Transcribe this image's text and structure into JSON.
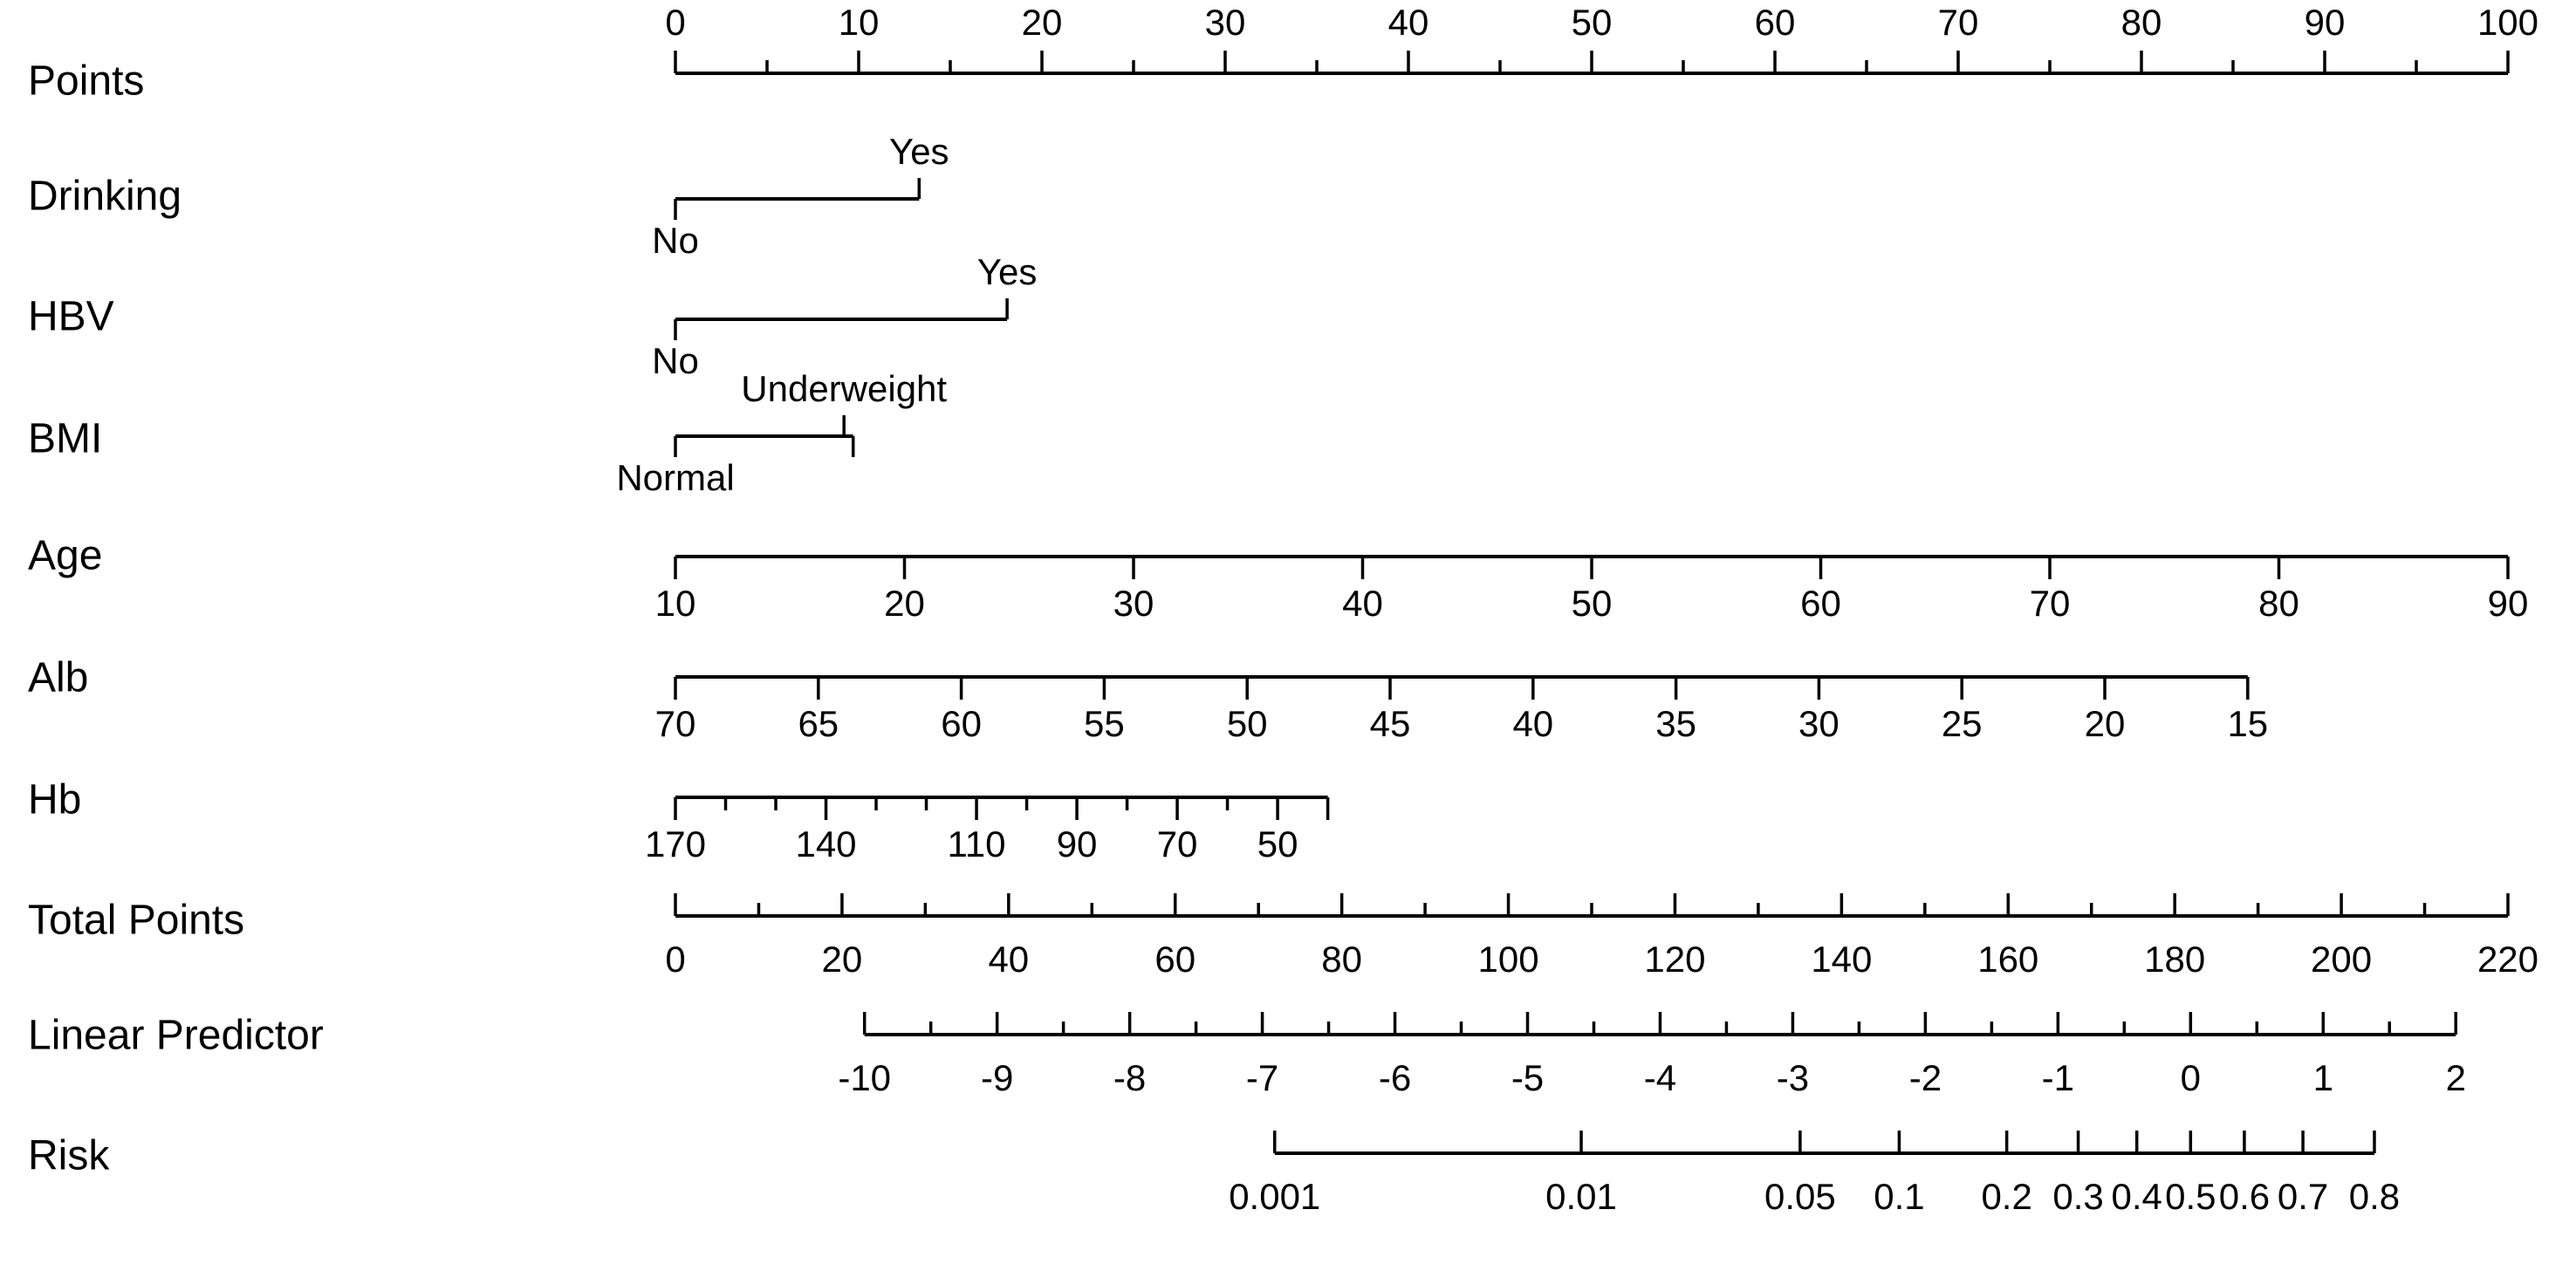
{
  "chart_data": {
    "type": "nomogram",
    "rows": [
      {
        "label": "Points",
        "ticks_above": true,
        "major": [
          {
            "v": 0,
            "text": "0"
          },
          {
            "v": 10,
            "text": "10"
          },
          {
            "v": 20,
            "text": "20"
          },
          {
            "v": 30,
            "text": "30"
          },
          {
            "v": 40,
            "text": "40"
          },
          {
            "v": 50,
            "text": "50"
          },
          {
            "v": 60,
            "text": "60"
          },
          {
            "v": 70,
            "text": "70"
          },
          {
            "v": 80,
            "text": "80"
          },
          {
            "v": 90,
            "text": "90"
          },
          {
            "v": 100,
            "text": "100"
          }
        ],
        "minor": [
          5,
          15,
          25,
          35,
          45,
          55,
          65,
          75,
          85,
          95
        ]
      },
      {
        "label": "Drinking",
        "categories": [
          {
            "text": "No",
            "points": 0
          },
          {
            "text": "Yes",
            "points": 13.3
          }
        ]
      },
      {
        "label": "HBV",
        "categories": [
          {
            "text": "No",
            "points": 0
          },
          {
            "text": "Yes",
            "points": 18.1
          }
        ]
      },
      {
        "label": "BMI",
        "categories": [
          {
            "text": "Normal",
            "points": 0
          },
          {
            "text": "Underweight",
            "points": 9.2
          },
          {
            "text": "",
            "points": 9.7
          }
        ]
      },
      {
        "label": "Age",
        "ticks_above": false,
        "major": [
          {
            "v": 10,
            "text": "10"
          },
          {
            "v": 20,
            "text": "20"
          },
          {
            "v": 30,
            "text": "30"
          },
          {
            "v": 40,
            "text": "40"
          },
          {
            "v": 50,
            "text": "50"
          },
          {
            "v": 60,
            "text": "60"
          },
          {
            "v": 70,
            "text": "70"
          },
          {
            "v": 80,
            "text": "80"
          },
          {
            "v": 90,
            "text": "90"
          }
        ],
        "minor": [],
        "points_per_unit": 1.25,
        "points_at_start": 0,
        "start": 10
      },
      {
        "label": "Alb",
        "ticks_above": false,
        "major": [
          {
            "v": 70,
            "text": "70"
          },
          {
            "v": 65,
            "text": "65"
          },
          {
            "v": 60,
            "text": "60"
          },
          {
            "v": 55,
            "text": "55"
          },
          {
            "v": 50,
            "text": "50"
          },
          {
            "v": 45,
            "text": "45"
          },
          {
            "v": 40,
            "text": "40"
          },
          {
            "v": 35,
            "text": "35"
          },
          {
            "v": 30,
            "text": "30"
          },
          {
            "v": 25,
            "text": "25"
          },
          {
            "v": 20,
            "text": "20"
          },
          {
            "v": 15,
            "text": "15"
          }
        ],
        "minor": [],
        "start": 70,
        "end": 15,
        "points_at_start": 0,
        "points_at_end": 85.8
      },
      {
        "label": "Hb",
        "ticks_above": false,
        "major": [
          {
            "v": 170,
            "text": "170"
          },
          {
            "v": 140,
            "text": "140"
          },
          {
            "v": 110,
            "text": "110"
          },
          {
            "v": 90,
            "text": "90"
          },
          {
            "v": 70,
            "text": "70"
          },
          {
            "v": 50,
            "text": "50"
          }
        ],
        "minor": [
          160,
          150,
          130,
          120,
          100,
          80,
          60
        ],
        "start": 170,
        "end": 40,
        "points_at_start": 0,
        "points_at_end": 35.6
      },
      {
        "label": "Total Points",
        "ticks_above": true,
        "major": [
          {
            "v": 0,
            "text": "0"
          },
          {
            "v": 20,
            "text": "20"
          },
          {
            "v": 40,
            "text": "40"
          },
          {
            "v": 60,
            "text": "60"
          },
          {
            "v": 80,
            "text": "80"
          },
          {
            "v": 100,
            "text": "100"
          },
          {
            "v": 120,
            "text": "120"
          },
          {
            "v": 140,
            "text": "140"
          },
          {
            "v": 160,
            "text": "160"
          },
          {
            "v": 180,
            "text": "180"
          },
          {
            "v": 200,
            "text": "200"
          },
          {
            "v": 220,
            "text": "220"
          }
        ],
        "minor": [
          10,
          30,
          50,
          70,
          90,
          110,
          130,
          150,
          170,
          190,
          210
        ],
        "start": 0,
        "end": 220
      },
      {
        "label": "Linear Predictor",
        "ticks_above": true,
        "major": [
          {
            "v": -10,
            "text": "-10"
          },
          {
            "v": -9,
            "text": "-9"
          },
          {
            "v": -8,
            "text": "-8"
          },
          {
            "v": -7,
            "text": "-7"
          },
          {
            "v": -6,
            "text": "-6"
          },
          {
            "v": -5,
            "text": "-5"
          },
          {
            "v": -4,
            "text": "-4"
          },
          {
            "v": -3,
            "text": "-3"
          },
          {
            "v": -2,
            "text": "-2"
          },
          {
            "v": -1,
            "text": "-1"
          },
          {
            "v": 0,
            "text": "0"
          },
          {
            "v": 1,
            "text": "1"
          },
          {
            "v": 2,
            "text": "2"
          }
        ],
        "minor": [
          -9.5,
          -8.5,
          -7.5,
          -6.5,
          -5.5,
          -4.5,
          -3.5,
          -2.5,
          -1.5,
          -0.5,
          0.5,
          1.5
        ],
        "total_points_at_start": 22.7,
        "total_points_per_unit": 15.92
      },
      {
        "label": "Risk",
        "ticks_above": true,
        "major": [
          {
            "v": 0.001,
            "text": "0.001"
          },
          {
            "v": 0.01,
            "text": "0.01"
          },
          {
            "v": 0.05,
            "text": "0.05"
          },
          {
            "v": 0.1,
            "text": "0.1"
          },
          {
            "v": 0.2,
            "text": "0.2"
          },
          {
            "v": 0.3,
            "text": "0.3"
          },
          {
            "v": 0.4,
            "text": "0.4"
          },
          {
            "v": 0.5,
            "text": "0.5"
          },
          {
            "v": 0.6,
            "text": "0.6"
          },
          {
            "v": 0.7,
            "text": "0.7"
          },
          {
            "v": 0.8,
            "text": "0.8"
          }
        ],
        "minor": [],
        "scale": "logit"
      }
    ]
  }
}
